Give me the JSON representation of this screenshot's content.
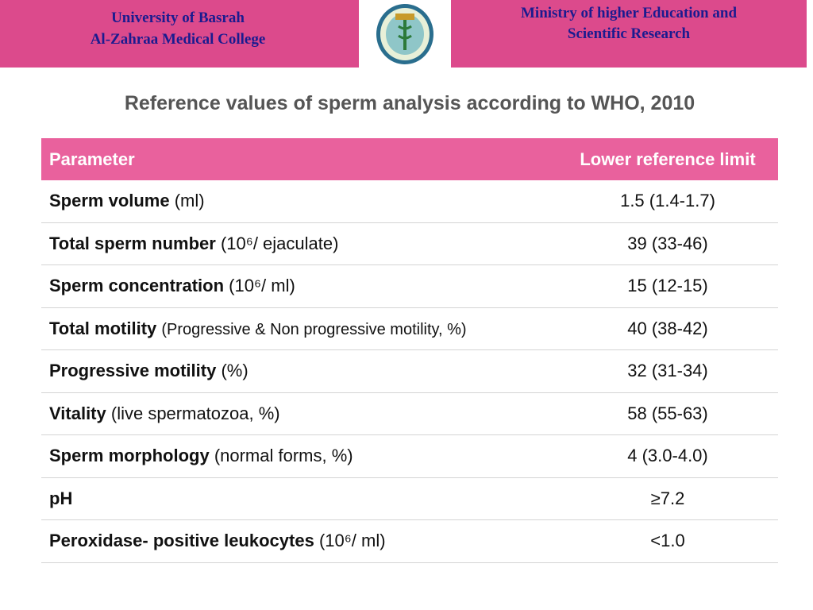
{
  "header": {
    "left": [
      "University of Basrah",
      "Al-Zahraa Medical College"
    ],
    "right": [
      "Ministry of higher Education  and",
      "Scientific Research"
    ]
  },
  "title": "Reference values of sperm analysis according to WHO, 2010",
  "table": {
    "columns": [
      "Parameter",
      "Lower reference limit"
    ],
    "rows": [
      {
        "name": "Sperm volume",
        "unit": "(ml)",
        "value": "1.5 (1.4-1.7)"
      },
      {
        "name": "Total sperm number",
        "unit": "(10⁶/ ejaculate)",
        "value": "39 (33-46)"
      },
      {
        "name": "Sperm concentration",
        "unit": "(10⁶/ ml)",
        "value": "15 (12-15)"
      },
      {
        "name": "Total motility",
        "unit": "(Progressive & Non progressive motility, %)",
        "value": "40 (38-42)"
      },
      {
        "name": "Progressive motility",
        "unit": "(%)",
        "value": "32 (31-34)"
      },
      {
        "name": "Vitality",
        "unit": "(live spermatozoa, %)",
        "value": "58 (55-63)"
      },
      {
        "name": "Sperm morphology",
        "unit": "(normal forms, %)",
        "value": "4 (3.0-4.0)"
      },
      {
        "name": "pH",
        "value": "≥7.2"
      },
      {
        "name": "Peroxidase- positive leukocytes",
        "unit": "(10⁶/ ml)",
        "value": "<1.0"
      }
    ]
  }
}
